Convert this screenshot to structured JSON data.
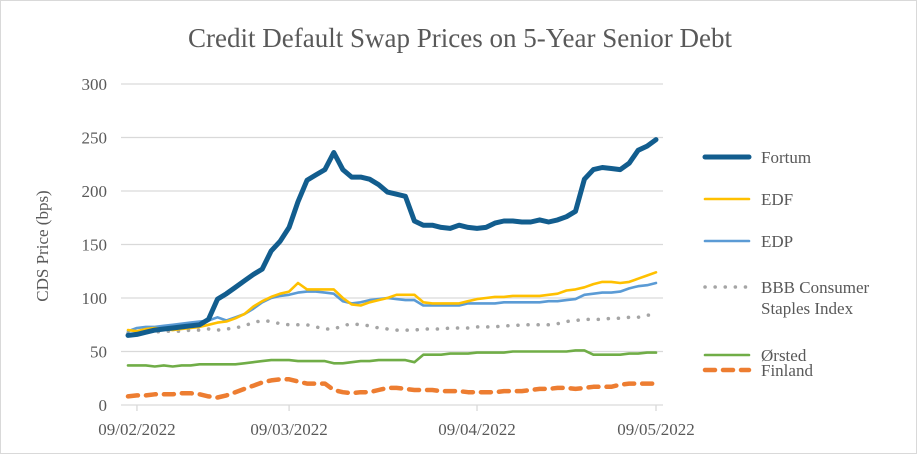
{
  "chart_data": {
    "type": "line",
    "title": "Credit Default Swap Prices on 5-Year Senior Debt",
    "ylabel": "CDS Price (bps)",
    "xlabel": "",
    "ylim": [
      0,
      300
    ],
    "yticks": [
      0,
      50,
      100,
      150,
      200,
      250,
      300
    ],
    "x_tick_labels": [
      {
        "index": 1,
        "label": "09/02/2022"
      },
      {
        "index": 18,
        "label": "09/03/2022"
      },
      {
        "index": 39,
        "label": "09/04/2022"
      },
      {
        "index": 59,
        "label": "09/05/2022"
      }
    ],
    "grid": "horizontal",
    "legend": "right",
    "series": [
      {
        "name": "Fortum",
        "color": "#125D8E",
        "style": "solid-thick",
        "values": [
          65,
          66,
          68,
          70,
          71,
          72,
          73,
          74,
          75,
          80,
          99,
          104,
          110,
          116,
          122,
          127,
          144,
          153,
          166,
          190,
          210,
          215,
          220,
          236,
          220,
          213,
          213,
          211,
          206,
          199,
          197,
          195,
          172,
          168,
          168,
          166,
          165,
          168,
          166,
          165,
          166,
          170,
          172,
          172,
          171,
          171,
          173,
          171,
          173,
          176,
          181,
          211,
          220,
          222,
          221,
          220,
          226,
          238,
          242,
          248
        ]
      },
      {
        "name": "EDF",
        "color": "#FFC000",
        "style": "solid",
        "values": [
          70,
          69,
          71,
          72,
          71,
          70,
          71,
          72,
          73,
          75,
          77,
          78,
          81,
          85,
          92,
          97,
          101,
          104,
          106,
          114,
          108,
          108,
          108,
          108,
          100,
          94,
          93,
          96,
          98,
          100,
          103,
          103,
          103,
          96,
          95,
          95,
          95,
          95,
          97,
          99,
          100,
          101,
          101,
          102,
          102,
          102,
          102,
          103,
          104,
          107,
          108,
          110,
          113,
          115,
          115,
          114,
          115,
          118,
          121,
          124
        ]
      },
      {
        "name": "EDP",
        "color": "#5B9BD5",
        "style": "solid",
        "values": [
          69,
          72,
          73,
          73,
          74,
          75,
          76,
          77,
          78,
          79,
          82,
          79,
          82,
          85,
          90,
          96,
          100,
          102,
          103,
          105,
          106,
          106,
          105,
          104,
          97,
          95,
          96,
          98,
          99,
          100,
          99,
          98,
          98,
          93,
          93,
          93,
          93,
          93,
          95,
          95,
          95,
          95,
          96,
          96,
          96,
          96,
          96,
          97,
          97,
          98,
          99,
          103,
          104,
          105,
          105,
          106,
          109,
          111,
          112,
          114
        ]
      },
      {
        "name": "BBB Consumer Staples Index",
        "legend_lines": [
          "BBB Consumer",
          "Staples Index"
        ],
        "color": "#A5A5A5",
        "style": "dotted",
        "values": [
          67,
          67,
          68,
          68,
          69,
          69,
          69,
          70,
          70,
          71,
          70,
          71,
          72,
          74,
          77,
          79,
          78,
          76,
          75,
          75,
          75,
          73,
          71,
          71,
          74,
          76,
          75,
          74,
          72,
          71,
          70,
          70,
          70,
          71,
          71,
          71,
          72,
          72,
          72,
          73,
          73,
          73,
          74,
          74,
          75,
          75,
          75,
          75,
          76,
          78,
          79,
          80,
          80,
          80,
          81,
          81,
          82,
          82,
          84,
          84
        ]
      },
      {
        "name": "Ørsted",
        "color": "#70AD47",
        "style": "solid",
        "values": [
          37,
          37,
          37,
          36,
          37,
          36,
          37,
          37,
          38,
          38,
          38,
          38,
          38,
          39,
          40,
          41,
          42,
          42,
          42,
          41,
          41,
          41,
          41,
          39,
          39,
          40,
          41,
          41,
          42,
          42,
          42,
          42,
          40,
          47,
          47,
          47,
          48,
          48,
          48,
          49,
          49,
          49,
          49,
          50,
          50,
          50,
          50,
          50,
          50,
          50,
          51,
          51,
          47,
          47,
          47,
          47,
          48,
          48,
          49,
          49
        ]
      },
      {
        "name": "Finland",
        "color": "#ED7D31",
        "style": "dashed",
        "values": [
          8,
          9,
          9,
          10,
          10,
          10,
          11,
          11,
          10,
          8,
          7,
          9,
          12,
          15,
          18,
          21,
          23,
          24,
          24,
          22,
          20,
          20,
          20,
          14,
          12,
          11,
          12,
          12,
          14,
          16,
          16,
          15,
          14,
          14,
          14,
          13,
          13,
          13,
          12,
          12,
          12,
          12,
          13,
          13,
          13,
          14,
          15,
          15,
          16,
          16,
          15,
          16,
          17,
          17,
          17,
          19,
          20,
          20,
          20,
          20
        ]
      }
    ]
  }
}
